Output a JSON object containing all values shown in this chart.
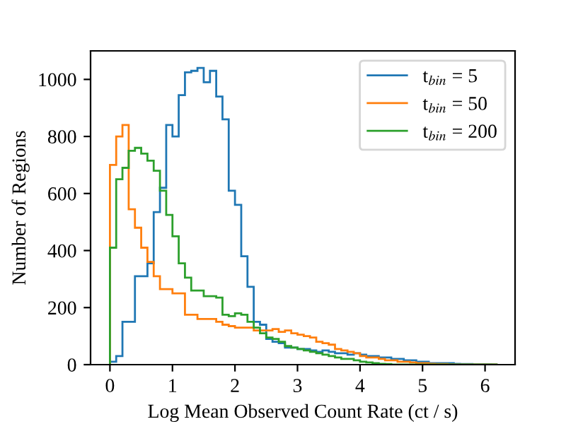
{
  "chart_data": {
    "type": "histogram",
    "xlabel": "Log Mean Observed Count Rate (ct / s)",
    "ylabel": "Number of Regions",
    "bins": [
      0,
      0.1,
      0.2,
      0.3,
      0.4,
      0.5,
      0.6,
      0.7,
      0.8,
      0.9,
      1.0,
      1.1,
      1.2,
      1.3,
      1.4,
      1.5,
      1.6,
      1.7,
      1.8,
      1.9,
      2.0,
      2.1,
      2.2,
      2.3,
      2.4,
      2.5,
      2.6,
      2.7,
      2.8,
      2.9,
      3.0,
      3.1,
      3.2,
      3.3,
      3.4,
      3.5,
      3.6,
      3.7,
      3.8,
      3.9,
      4.0,
      4.1,
      4.2,
      4.3,
      4.4,
      4.5,
      4.6,
      4.7,
      4.8,
      4.9,
      5.0,
      5.1,
      5.2,
      5.3,
      5.4,
      5.5,
      5.6,
      5.7,
      5.8,
      5.9,
      6.0,
      6.1,
      6.2
    ],
    "series": [
      {
        "name": "t$_{bin}$ = 5",
        "color": "#1f77b4",
        "values": [
          10,
          30,
          150,
          150,
          310,
          310,
          355,
          535,
          620,
          840,
          800,
          945,
          1025,
          1030,
          1040,
          990,
          1030,
          940,
          860,
          610,
          560,
          380,
          273,
          150,
          140,
          90,
          80,
          75,
          60,
          60,
          55,
          55,
          50,
          45,
          50,
          45,
          40,
          40,
          35,
          40,
          35,
          30,
          30,
          25,
          25,
          20,
          20,
          15,
          15,
          10,
          10,
          5,
          5,
          5,
          5,
          3,
          2,
          2,
          1,
          1,
          1,
          0
        ]
      },
      {
        "name": "t$_{bin}$ = 50",
        "color": "#ff7f0e",
        "values": [
          700,
          800,
          840,
          545,
          480,
          410,
          360,
          310,
          265,
          265,
          250,
          250,
          175,
          175,
          160,
          160,
          160,
          150,
          140,
          135,
          130,
          130,
          130,
          120,
          120,
          120,
          125,
          115,
          120,
          110,
          105,
          100,
          95,
          80,
          75,
          70,
          55,
          50,
          45,
          40,
          30,
          25,
          25,
          20,
          15,
          15,
          10,
          10,
          8,
          5,
          5,
          3,
          2,
          2,
          1,
          0,
          0,
          0,
          0,
          0,
          0,
          0
        ]
      },
      {
        "name": "t$_{bin}$ = 200",
        "color": "#2ca02c",
        "values": [
          410,
          650,
          690,
          750,
          760,
          740,
          715,
          680,
          610,
          525,
          450,
          355,
          305,
          260,
          260,
          240,
          240,
          235,
          175,
          170,
          180,
          175,
          150,
          130,
          110,
          95,
          90,
          80,
          65,
          60,
          55,
          50,
          45,
          40,
          35,
          30,
          25,
          20,
          20,
          15,
          10,
          8,
          5,
          3,
          2,
          0,
          0,
          0,
          0,
          0,
          0,
          0,
          0,
          0,
          0,
          0,
          0,
          0,
          0,
          0,
          0,
          0
        ]
      }
    ],
    "xlim": [
      -0.31,
      6.48
    ],
    "ylim": [
      0,
      1100
    ],
    "xticks": [
      0,
      1,
      2,
      3,
      4,
      5,
      6
    ],
    "yticks": [
      0,
      200,
      400,
      600,
      800,
      1000
    ],
    "legend": "top right",
    "grid": false
  }
}
